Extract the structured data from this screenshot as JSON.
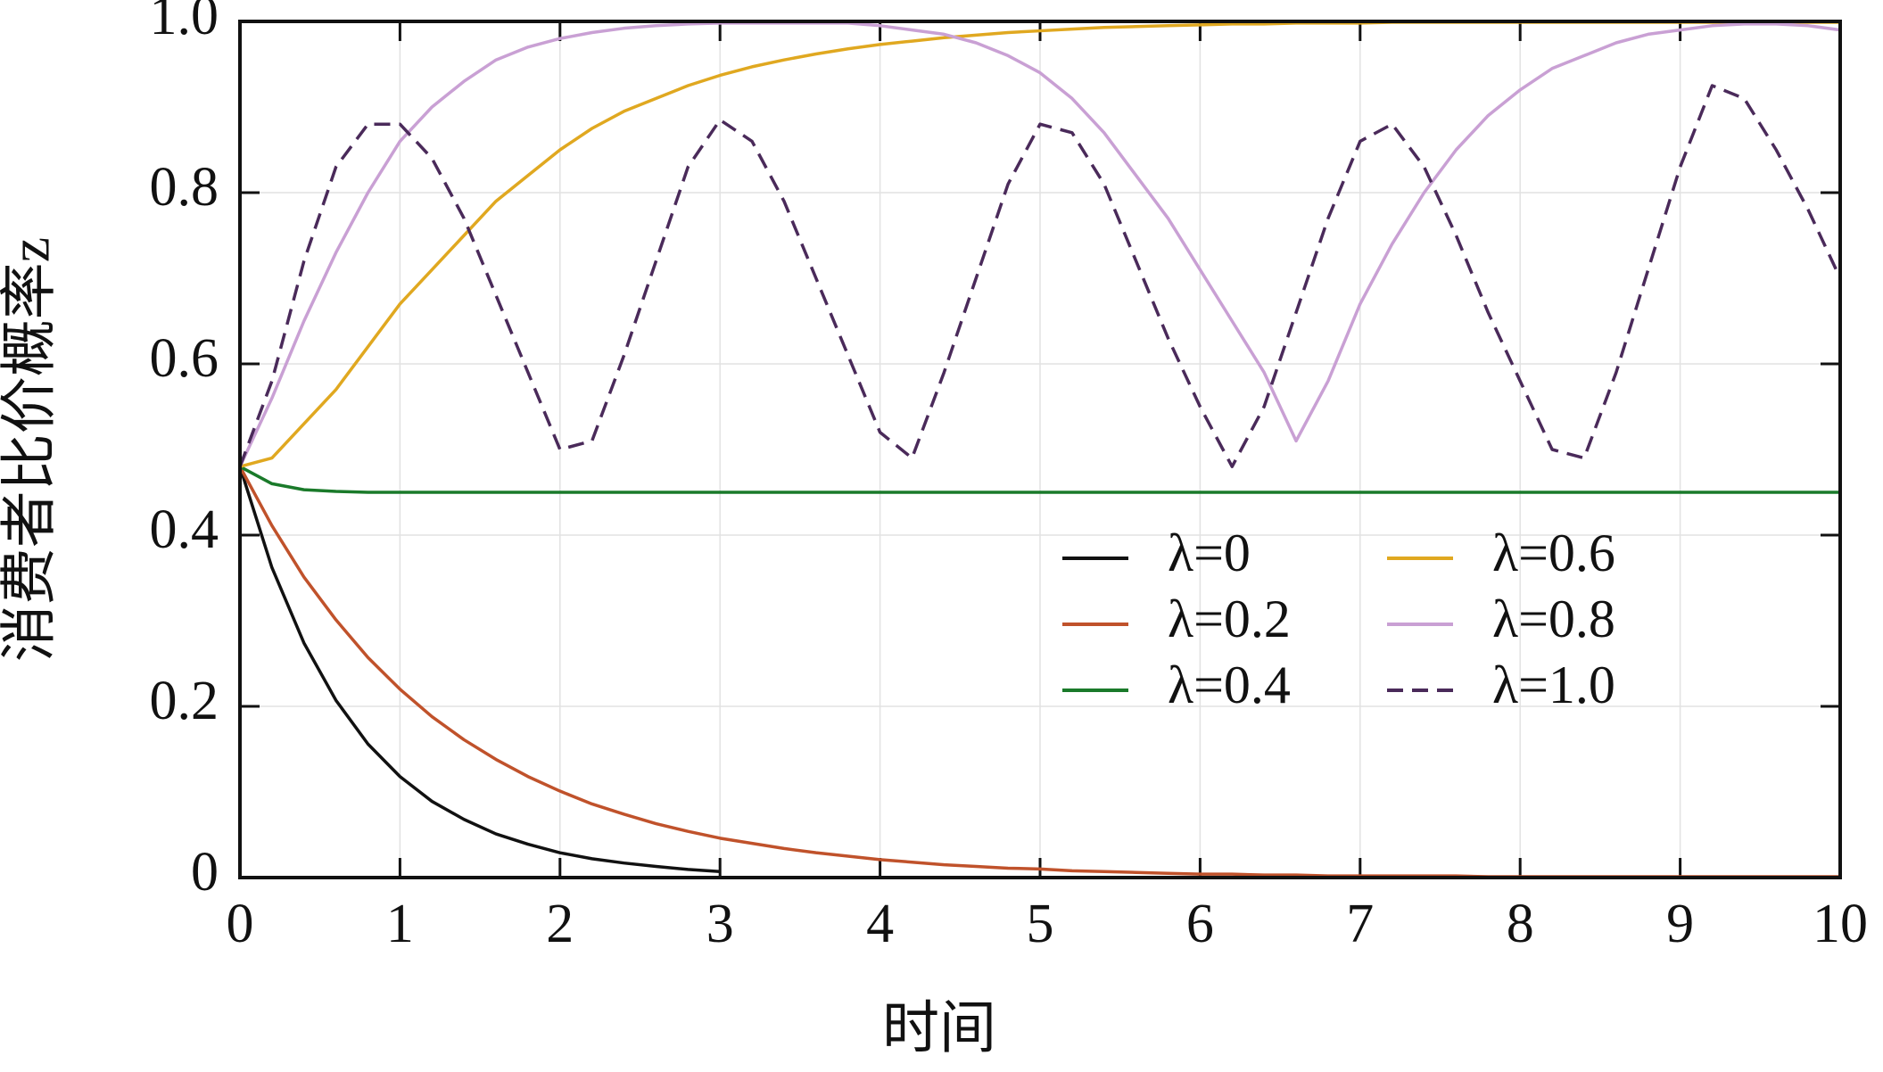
{
  "chart_data": {
    "type": "line",
    "xlabel": "时间",
    "ylabel": "消费者比价概率z",
    "x": [
      0,
      0.2,
      0.4,
      0.6,
      0.8,
      1,
      1.2,
      1.4,
      1.6,
      1.8,
      2,
      2.2,
      2.4,
      2.6,
      2.8,
      3,
      3.2,
      3.4,
      3.6,
      3.8,
      4,
      4.2,
      4.4,
      4.6,
      4.8,
      5,
      5.2,
      5.4,
      5.6,
      5.8,
      6,
      6.2,
      6.4,
      6.6,
      6.8,
      7,
      7.2,
      7.4,
      7.6,
      7.8,
      8,
      8.2,
      8.4,
      8.6,
      8.8,
      9,
      9.2,
      9.4,
      9.6,
      9.8,
      10
    ],
    "series": [
      {
        "name": "λ=0",
        "color": "#111111",
        "values": [
          0.48,
          0.362,
          0.274,
          0.207,
          0.156,
          0.118,
          0.089,
          0.068,
          0.051,
          0.039,
          0.029,
          0.022,
          0.017,
          0.013,
          0.0095,
          0.007,
          null,
          null,
          null,
          null,
          null,
          null,
          null,
          null,
          null,
          null,
          null,
          null,
          null,
          null,
          null,
          null,
          null,
          null,
          null,
          null,
          null,
          null,
          null,
          null,
          null,
          null,
          null,
          null,
          null,
          null,
          null,
          null,
          null,
          null,
          null
        ]
      },
      {
        "name": "λ=0.2",
        "color": "#c0522b",
        "values": [
          0.48,
          0.411,
          0.351,
          0.301,
          0.257,
          0.22,
          0.188,
          0.161,
          0.138,
          0.118,
          0.101,
          0.086,
          0.074,
          0.063,
          0.054,
          0.046,
          0.04,
          0.034,
          0.029,
          0.025,
          0.021,
          0.018,
          0.015,
          0.013,
          0.011,
          0.01,
          0.008,
          0.007,
          0.006,
          0.005,
          0.004,
          0.004,
          0.003,
          0.003,
          0.002,
          0.002,
          0.002,
          0.002,
          0.002,
          0.001,
          0.001,
          0.001,
          0.001,
          0.001,
          0.001,
          0.001,
          0.001,
          0.001,
          0.001,
          0.001,
          0.001
        ]
      },
      {
        "name": "λ=0.4",
        "color": "#1a7a2a",
        "values": [
          0.48,
          0.46,
          0.453,
          0.451,
          0.45,
          0.45,
          0.45,
          0.45,
          0.45,
          0.45,
          0.45,
          0.45,
          0.45,
          0.45,
          0.45,
          0.45,
          0.45,
          0.45,
          0.45,
          0.45,
          0.45,
          0.45,
          0.45,
          0.45,
          0.45,
          0.45,
          0.45,
          0.45,
          0.45,
          0.45,
          0.45,
          0.45,
          0.45,
          0.45,
          0.45,
          0.45,
          0.45,
          0.45,
          0.45,
          0.45,
          0.45,
          0.45,
          0.45,
          0.45,
          0.45,
          0.45,
          0.45,
          0.45,
          0.45,
          0.45,
          0.45
        ]
      },
      {
        "name": "λ=0.6",
        "color": "#e0a820",
        "values": [
          0.48,
          0.49,
          0.53,
          0.57,
          0.62,
          0.67,
          0.71,
          0.75,
          0.79,
          0.82,
          0.85,
          0.875,
          0.895,
          0.91,
          0.925,
          0.937,
          0.947,
          0.955,
          0.962,
          0.968,
          0.973,
          0.977,
          0.981,
          0.984,
          0.987,
          0.989,
          0.991,
          0.993,
          0.994,
          0.995,
          0.996,
          0.997,
          0.997,
          0.998,
          0.998,
          0.998,
          0.999,
          0.999,
          0.999,
          0.999,
          0.999,
          0.999,
          0.999,
          0.999,
          0.999,
          0.999,
          0.999,
          0.999,
          0.999,
          0.999,
          0.999
        ]
      },
      {
        "name": "λ=0.8",
        "color": "#c9a0d4",
        "values": [
          0.48,
          0.56,
          0.65,
          0.73,
          0.8,
          0.86,
          0.9,
          0.93,
          0.955,
          0.97,
          0.98,
          0.987,
          0.992,
          0.995,
          0.997,
          0.998,
          0.998,
          0.998,
          0.998,
          0.998,
          0.995,
          0.99,
          0.985,
          0.975,
          0.96,
          0.94,
          0.91,
          0.87,
          0.82,
          0.77,
          0.71,
          0.65,
          0.59,
          0.51,
          0.58,
          0.67,
          0.74,
          0.8,
          0.85,
          0.89,
          0.92,
          0.945,
          0.96,
          0.975,
          0.985,
          0.99,
          0.995,
          0.997,
          0.997,
          0.995,
          0.99
        ]
      },
      {
        "name": "λ=1.0",
        "color": "#4a2a5a",
        "dashed": true,
        "values": [
          0.48,
          0.58,
          0.72,
          0.83,
          0.88,
          0.88,
          0.84,
          0.77,
          0.68,
          0.59,
          0.5,
          0.51,
          0.61,
          0.72,
          0.83,
          0.885,
          0.86,
          0.79,
          0.7,
          0.61,
          0.52,
          0.49,
          0.59,
          0.7,
          0.81,
          0.88,
          0.87,
          0.81,
          0.72,
          0.63,
          0.55,
          0.48,
          0.55,
          0.66,
          0.77,
          0.86,
          0.88,
          0.83,
          0.75,
          0.66,
          0.58,
          0.5,
          0.49,
          0.59,
          0.71,
          0.83,
          0.925,
          0.91,
          0.85,
          0.78,
          0.7
        ]
      }
    ],
    "xlim": [
      0,
      10
    ],
    "xticks": [
      0,
      1,
      2,
      3,
      4,
      5,
      6,
      7,
      8,
      9,
      10
    ],
    "ylim": [
      0,
      1
    ],
    "yticks": [
      0,
      0.2,
      0.4,
      0.6,
      0.8,
      {
        "value": 1,
        "label": "1.0"
      }
    ],
    "grid": true,
    "legend_columns": 2
  }
}
